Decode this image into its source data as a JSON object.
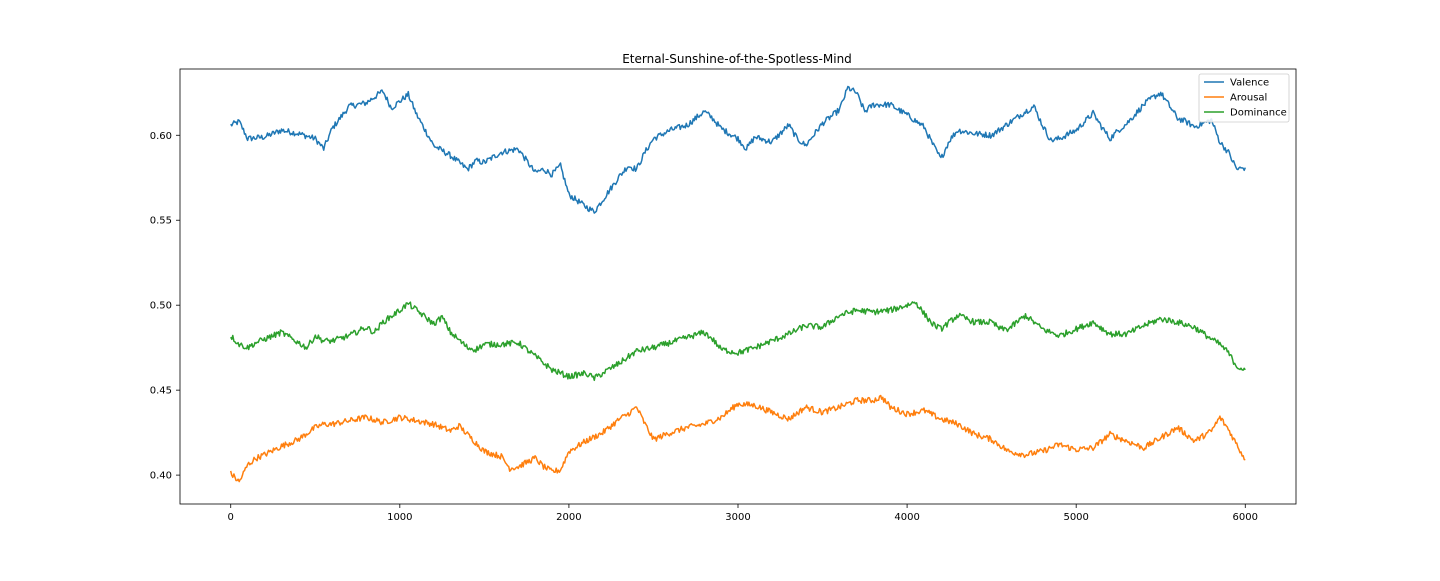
{
  "chart_data": {
    "type": "line",
    "title": "Eternal-Sunshine-of-the-Spotless-Mind",
    "xlabel": "",
    "ylabel": "",
    "xlim": [
      -300,
      6300
    ],
    "ylim": [
      0.383,
      0.639
    ],
    "xticks": [
      0,
      1000,
      2000,
      3000,
      4000,
      5000,
      6000
    ],
    "xtick_labels": [
      "0",
      "1000",
      "2000",
      "3000",
      "4000",
      "5000",
      "6000"
    ],
    "yticks": [
      0.4,
      0.45,
      0.5,
      0.55,
      0.6
    ],
    "ytick_labels": [
      "0.40",
      "0.45",
      "0.50",
      "0.55",
      "0.60"
    ],
    "grid": false,
    "legend_position": "top-right",
    "series": [
      {
        "name": "Valence",
        "color": "#1f77b4",
        "x": [
          0,
          50,
          100,
          200,
          300,
          400,
          500,
          550,
          600,
          700,
          800,
          900,
          950,
          1000,
          1050,
          1100,
          1200,
          1300,
          1400,
          1450,
          1500,
          1600,
          1700,
          1750,
          1800,
          1850,
          1900,
          1950,
          2000,
          2100,
          2150,
          2200,
          2300,
          2350,
          2400,
          2450,
          2500,
          2600,
          2700,
          2800,
          2850,
          2900,
          3000,
          3050,
          3100,
          3200,
          3300,
          3350,
          3400,
          3500,
          3600,
          3650,
          3700,
          3750,
          3800,
          3900,
          4000,
          4100,
          4150,
          4200,
          4250,
          4300,
          4400,
          4500,
          4600,
          4700,
          4750,
          4800,
          4850,
          4900,
          5000,
          5100,
          5150,
          5200,
          5250,
          5300,
          5400,
          5450,
          5500,
          5600,
          5650,
          5700,
          5800,
          5850,
          5900,
          5950,
          6000
        ],
        "values": [
          0.606,
          0.608,
          0.598,
          0.599,
          0.603,
          0.601,
          0.598,
          0.592,
          0.604,
          0.617,
          0.619,
          0.626,
          0.616,
          0.62,
          0.624,
          0.612,
          0.594,
          0.588,
          0.58,
          0.585,
          0.584,
          0.59,
          0.592,
          0.585,
          0.578,
          0.58,
          0.577,
          0.582,
          0.565,
          0.558,
          0.555,
          0.562,
          0.576,
          0.582,
          0.58,
          0.59,
          0.598,
          0.603,
          0.606,
          0.614,
          0.61,
          0.604,
          0.598,
          0.592,
          0.599,
          0.596,
          0.606,
          0.598,
          0.594,
          0.607,
          0.615,
          0.628,
          0.625,
          0.614,
          0.618,
          0.618,
          0.612,
          0.605,
          0.595,
          0.586,
          0.597,
          0.603,
          0.601,
          0.6,
          0.607,
          0.614,
          0.617,
          0.606,
          0.597,
          0.598,
          0.603,
          0.613,
          0.605,
          0.598,
          0.603,
          0.607,
          0.618,
          0.622,
          0.625,
          0.61,
          0.608,
          0.605,
          0.609,
          0.596,
          0.59,
          0.58,
          0.581
        ]
      },
      {
        "name": "Arousal",
        "color": "#ff7f0e",
        "x": [
          0,
          50,
          100,
          150,
          200,
          300,
          400,
          500,
          550,
          600,
          700,
          800,
          900,
          1000,
          1100,
          1200,
          1300,
          1350,
          1400,
          1500,
          1600,
          1650,
          1700,
          1800,
          1850,
          1900,
          1950,
          2000,
          2100,
          2200,
          2300,
          2350,
          2400,
          2450,
          2500,
          2600,
          2700,
          2800,
          2900,
          3000,
          3100,
          3200,
          3300,
          3400,
          3500,
          3600,
          3700,
          3800,
          3850,
          3900,
          4000,
          4100,
          4200,
          4300,
          4400,
          4500,
          4600,
          4700,
          4800,
          4900,
          5000,
          5100,
          5200,
          5300,
          5400,
          5500,
          5600,
          5700,
          5800,
          5850,
          5900,
          5950,
          6000
        ],
        "values": [
          0.401,
          0.396,
          0.406,
          0.41,
          0.412,
          0.417,
          0.421,
          0.428,
          0.43,
          0.43,
          0.432,
          0.434,
          0.431,
          0.434,
          0.432,
          0.43,
          0.426,
          0.429,
          0.424,
          0.414,
          0.411,
          0.404,
          0.405,
          0.41,
          0.405,
          0.402,
          0.403,
          0.414,
          0.42,
          0.425,
          0.433,
          0.436,
          0.44,
          0.43,
          0.421,
          0.425,
          0.428,
          0.43,
          0.434,
          0.442,
          0.441,
          0.437,
          0.433,
          0.44,
          0.437,
          0.44,
          0.444,
          0.444,
          0.446,
          0.44,
          0.436,
          0.438,
          0.433,
          0.43,
          0.424,
          0.421,
          0.414,
          0.412,
          0.414,
          0.418,
          0.415,
          0.416,
          0.424,
          0.42,
          0.416,
          0.422,
          0.428,
          0.42,
          0.426,
          0.434,
          0.427,
          0.418,
          0.409
        ]
      },
      {
        "name": "Dominance",
        "color": "#2ca02c",
        "x": [
          0,
          50,
          100,
          150,
          200,
          300,
          400,
          450,
          500,
          550,
          600,
          700,
          800,
          850,
          900,
          1000,
          1050,
          1100,
          1200,
          1250,
          1300,
          1400,
          1450,
          1500,
          1600,
          1700,
          1800,
          1850,
          1900,
          1950,
          2000,
          2100,
          2150,
          2200,
          2300,
          2400,
          2500,
          2600,
          2700,
          2800,
          2850,
          2900,
          3000,
          3100,
          3200,
          3300,
          3400,
          3500,
          3600,
          3700,
          3800,
          3900,
          4000,
          4050,
          4100,
          4150,
          4200,
          4300,
          4400,
          4500,
          4550,
          4600,
          4700,
          4750,
          4800,
          4900,
          5000,
          5100,
          5200,
          5300,
          5400,
          5500,
          5600,
          5700,
          5800,
          5850,
          5900,
          5950,
          6000
        ],
        "values": [
          0.482,
          0.477,
          0.475,
          0.478,
          0.48,
          0.484,
          0.478,
          0.475,
          0.482,
          0.479,
          0.479,
          0.482,
          0.487,
          0.484,
          0.49,
          0.497,
          0.501,
          0.497,
          0.489,
          0.493,
          0.484,
          0.475,
          0.474,
          0.477,
          0.477,
          0.478,
          0.47,
          0.466,
          0.462,
          0.46,
          0.458,
          0.46,
          0.457,
          0.46,
          0.466,
          0.473,
          0.475,
          0.478,
          0.481,
          0.484,
          0.48,
          0.474,
          0.472,
          0.475,
          0.479,
          0.483,
          0.488,
          0.487,
          0.494,
          0.497,
          0.496,
          0.497,
          0.5,
          0.502,
          0.495,
          0.489,
          0.486,
          0.494,
          0.49,
          0.49,
          0.486,
          0.486,
          0.494,
          0.49,
          0.486,
          0.482,
          0.486,
          0.49,
          0.483,
          0.483,
          0.488,
          0.492,
          0.49,
          0.487,
          0.48,
          0.477,
          0.472,
          0.464,
          0.462
        ]
      }
    ]
  }
}
